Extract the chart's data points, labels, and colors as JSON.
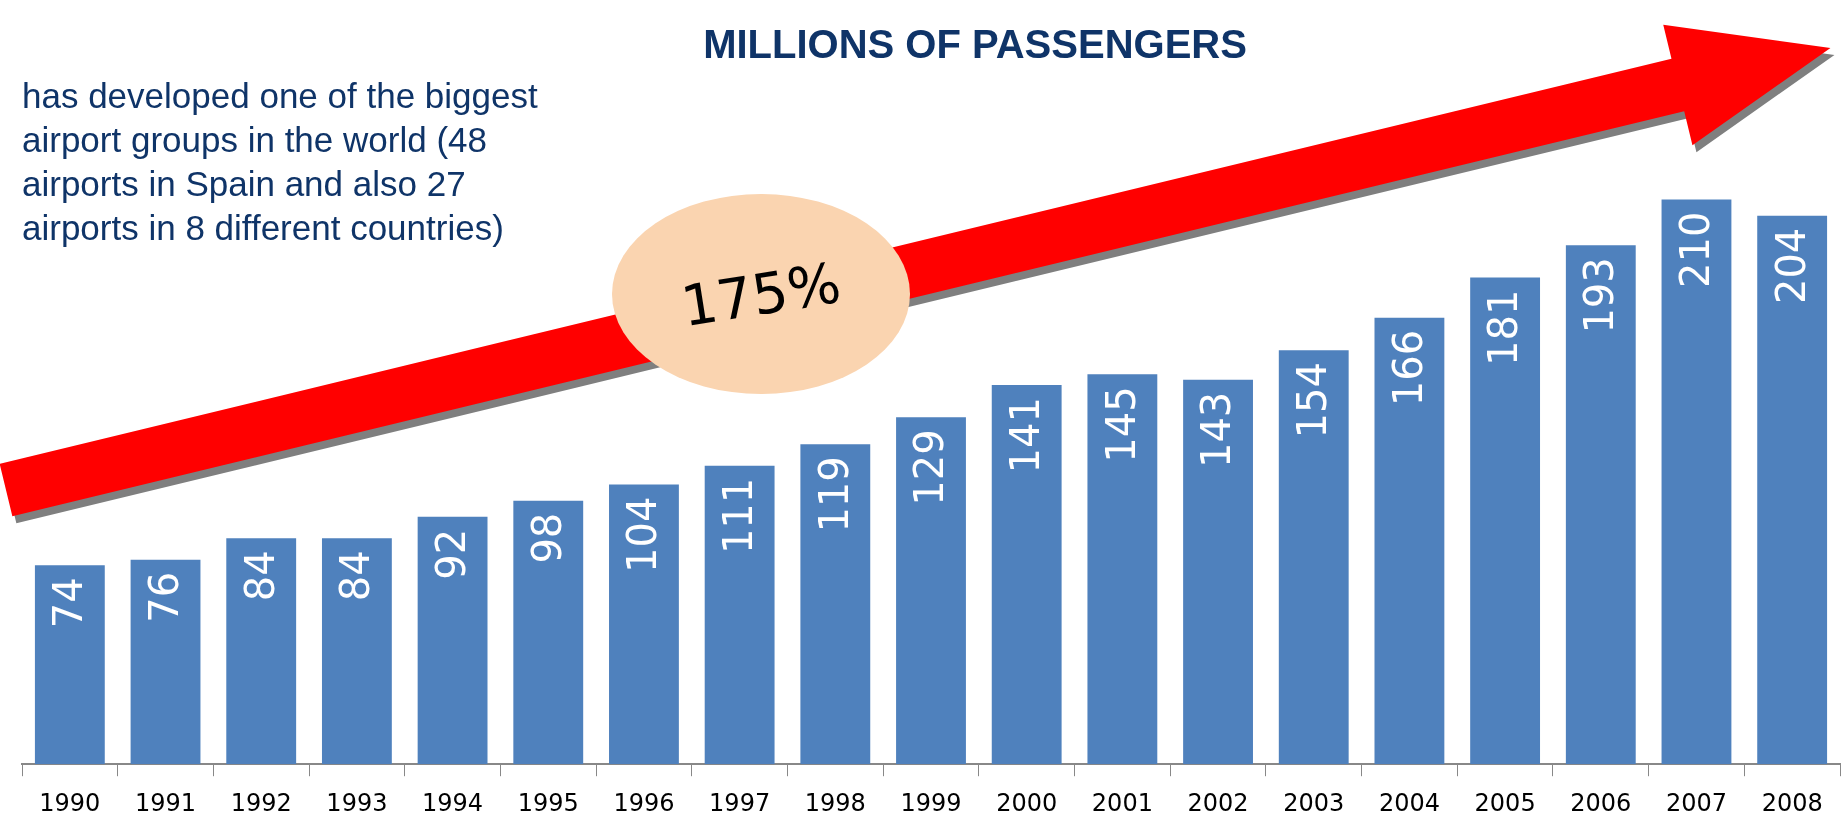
{
  "chart_data": {
    "type": "bar",
    "title": "MILLIONS OF PASSENGERS",
    "categories": [
      "1990",
      "1991",
      "1992",
      "1993",
      "1994",
      "1995",
      "1996",
      "1997",
      "1998",
      "1999",
      "2000",
      "2001",
      "2002",
      "2003",
      "2004",
      "2005",
      "2006",
      "2007",
      "2008"
    ],
    "values": [
      74,
      76,
      84,
      84,
      92,
      98,
      104,
      111,
      119,
      129,
      141,
      145,
      143,
      154,
      166,
      181,
      193,
      210,
      204
    ],
    "color": "#4f81bd",
    "data_labels": true,
    "annotations": [
      "has developed one of the biggest airport groups in the world (48 airports in Spain and also 27 airports in 8 different countries)",
      "175%"
    ]
  }
}
